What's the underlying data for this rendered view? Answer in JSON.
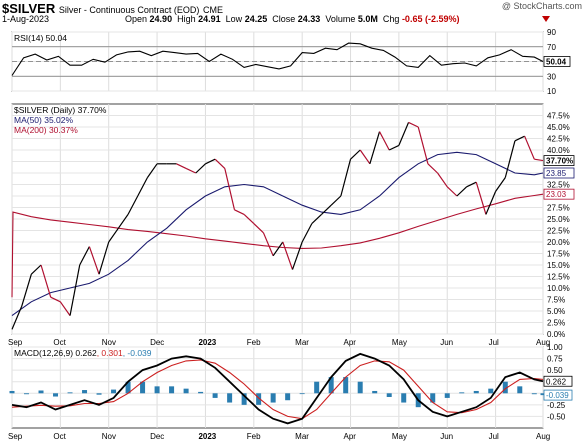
{
  "header": {
    "symbol": "$SILVER",
    "description": "Silver - Continuous Contract (EOD)",
    "exchange": "CME",
    "date": "1-Aug-2023",
    "watermark": "@ StockCharts.com",
    "open_label": "Open",
    "open": "24.90",
    "high_label": "High",
    "high": "24.91",
    "low_label": "Low",
    "low": "24.25",
    "close_label": "Close",
    "close": "24.33",
    "volume_label": "Volume",
    "volume": "5.0M",
    "chg_label": "Chg",
    "chg": "-0.65 (-2.59%)",
    "down_color": "#c00000"
  },
  "chart_data": [
    {
      "type": "line",
      "panel": "rsi",
      "legend": "RSI(14) 50.04",
      "ylim": [
        10,
        90
      ],
      "ticks": [
        "90",
        "70",
        "50",
        "30",
        "10"
      ],
      "current_label": "50.04",
      "reference_lines": [
        70,
        50,
        30
      ],
      "series": [
        {
          "name": "RSI(14)",
          "color": "#000000",
          "x": [
            0,
            12,
            24,
            36,
            48,
            60,
            72,
            84,
            96,
            108,
            120,
            132,
            144,
            156,
            168,
            180,
            192,
            204,
            216,
            228,
            240,
            252,
            264,
            276,
            288,
            300,
            312,
            324,
            336,
            348,
            360,
            372,
            384,
            396,
            408,
            420,
            432,
            444,
            456,
            468,
            480,
            492,
            504,
            516,
            528,
            540,
            549
          ],
          "values": [
            31,
            55,
            60,
            52,
            57,
            45,
            45,
            53,
            49,
            59,
            63,
            64,
            58,
            64,
            62,
            60,
            61,
            50,
            60,
            53,
            42,
            46,
            43,
            40,
            44,
            62,
            61,
            68,
            66,
            75,
            74,
            68,
            65,
            56,
            44,
            42,
            58,
            45,
            47,
            48,
            44,
            55,
            59,
            66,
            57,
            56,
            50
          ]
        }
      ]
    },
    {
      "type": "line",
      "panel": "price",
      "legend": [
        "$SILVER (Daily) 37.70%",
        "MA(50) 35.02%",
        "MA(200) 30.37%"
      ],
      "ylabel": "",
      "ylim": [
        0,
        50
      ],
      "y_unit": "%",
      "ticks": [
        "47.5%",
        "45.0%",
        "42.5%",
        "40.0%",
        "37.5%",
        "35.0%",
        "32.5%",
        "30.0%",
        "27.5%",
        "25.0%",
        "22.5%",
        "20.0%",
        "17.5%",
        "15.0%",
        "12.5%",
        "10.0%",
        "7.5%",
        "5.0%",
        "2.5%",
        "0.0%"
      ],
      "value_labels": [
        "37.70%",
        "23.85",
        "23.03"
      ],
      "x_categories": [
        "Sep",
        "Oct",
        "Nov",
        "Dec",
        "2023",
        "Feb",
        "Mar",
        "Apr",
        "May",
        "Jun",
        "Jul",
        "Aug"
      ],
      "series": [
        {
          "name": "$SILVER (Daily) 37.70%",
          "color": "#000000",
          "down_color": "#b01030",
          "x": [
            0,
            10,
            20,
            30,
            40,
            50,
            60,
            70,
            80,
            90,
            100,
            110,
            120,
            130,
            140,
            150,
            160,
            170,
            180,
            190,
            200,
            210,
            220,
            230,
            240,
            250,
            260,
            270,
            280,
            290,
            300,
            310,
            320,
            330,
            340,
            350,
            360,
            370,
            380,
            390,
            400,
            410,
            420,
            430,
            440,
            450,
            460,
            470,
            480,
            490,
            500,
            510,
            520,
            530,
            540,
            549
          ],
          "values": [
            1,
            6,
            13,
            15,
            8,
            7,
            4,
            15,
            19,
            13,
            20,
            23,
            26,
            30,
            34,
            37,
            37,
            37,
            36,
            35,
            37,
            38,
            36,
            27,
            26,
            24,
            22,
            17,
            20,
            14,
            20,
            24,
            26,
            28,
            30,
            38,
            40,
            37,
            44,
            40,
            41,
            46,
            45,
            37,
            35,
            32,
            30,
            32,
            33,
            26,
            31,
            34,
            42,
            43,
            38,
            37.7
          ]
        },
        {
          "name": "MA(50) 35.02%",
          "color": "#1a1a6e",
          "x": [
            0,
            20,
            40,
            60,
            80,
            100,
            120,
            140,
            160,
            180,
            200,
            220,
            240,
            260,
            280,
            300,
            320,
            340,
            360,
            380,
            400,
            420,
            440,
            460,
            480,
            500,
            520,
            540,
            549
          ],
          "values": [
            4,
            7,
            9,
            10,
            11,
            13,
            16,
            20,
            23,
            27,
            30,
            32,
            32.5,
            32,
            30,
            28,
            26.5,
            26,
            27,
            30,
            34,
            37,
            39,
            39.5,
            39,
            37,
            35,
            34.6,
            35
          ]
        },
        {
          "name": "MA(200) 30.37%",
          "color": "#b01030",
          "x": [
            0,
            1,
            20,
            40,
            60,
            80,
            100,
            120,
            140,
            160,
            180,
            200,
            220,
            240,
            260,
            280,
            300,
            320,
            340,
            360,
            380,
            400,
            420,
            440,
            460,
            480,
            500,
            520,
            540,
            549
          ],
          "values": [
            8,
            26.5,
            25.5,
            24.8,
            24.3,
            23.8,
            23.3,
            22.7,
            22.3,
            21.8,
            21.3,
            20.7,
            20.2,
            19.7,
            19.2,
            18.8,
            18.6,
            18.7,
            19.2,
            19.8,
            20.8,
            22,
            23.4,
            24.7,
            26,
            27.2,
            28.3,
            29.5,
            30.1,
            30.4
          ]
        }
      ]
    },
    {
      "type": "line",
      "panel": "macd",
      "legend": [
        "MACD(12,26,9) 0.262",
        "0.301",
        "-0.039"
      ],
      "ylim": [
        -0.75,
        1.0
      ],
      "ticks": [
        "1.00",
        "0.75",
        "0.50",
        "0.25",
        "0.00",
        "-0.25",
        "-0.50"
      ],
      "value_labels": [
        "0.262",
        "-0.039"
      ],
      "x_categories": [
        "Sep",
        "Oct",
        "Nov",
        "Dec",
        "2023",
        "Feb",
        "Mar",
        "Apr",
        "May",
        "Jun",
        "Jul",
        "Aug"
      ],
      "series": [
        {
          "name": "MACD(12,26,9)",
          "color": "#000000",
          "x": [
            0,
            15,
            30,
            45,
            60,
            75,
            90,
            105,
            120,
            135,
            150,
            165,
            180,
            195,
            210,
            225,
            240,
            255,
            270,
            285,
            300,
            315,
            330,
            345,
            360,
            375,
            390,
            405,
            420,
            435,
            450,
            465,
            480,
            495,
            510,
            525,
            540,
            549
          ],
          "values": [
            -0.25,
            -0.3,
            -0.2,
            -0.35,
            -0.25,
            -0.15,
            -0.25,
            -0.1,
            0.25,
            0.5,
            0.6,
            0.75,
            0.8,
            0.75,
            0.55,
            0.25,
            -0.05,
            -0.35,
            -0.55,
            -0.65,
            -0.55,
            -0.1,
            0.35,
            0.7,
            0.85,
            0.75,
            0.6,
            0.3,
            -0.15,
            -0.4,
            -0.5,
            -0.4,
            -0.3,
            -0.1,
            0.35,
            0.45,
            0.3,
            0.26
          ]
        },
        {
          "name": "signal",
          "color": "#cc2020",
          "x": [
            0,
            15,
            30,
            45,
            60,
            75,
            90,
            105,
            120,
            135,
            150,
            165,
            180,
            195,
            210,
            225,
            240,
            255,
            270,
            285,
            300,
            315,
            330,
            345,
            360,
            375,
            390,
            405,
            420,
            435,
            450,
            465,
            480,
            495,
            510,
            525,
            540,
            549
          ],
          "values": [
            -0.3,
            -0.28,
            -0.26,
            -0.28,
            -0.27,
            -0.22,
            -0.22,
            -0.18,
            0.0,
            0.25,
            0.45,
            0.6,
            0.7,
            0.72,
            0.65,
            0.45,
            0.2,
            -0.1,
            -0.35,
            -0.5,
            -0.55,
            -0.35,
            0.0,
            0.35,
            0.6,
            0.7,
            0.68,
            0.5,
            0.15,
            -0.2,
            -0.4,
            -0.42,
            -0.35,
            -0.2,
            0.1,
            0.3,
            0.32,
            0.3
          ]
        },
        {
          "name": "histogram",
          "color": "#2a7db0",
          "x": [
            0,
            15,
            30,
            45,
            60,
            75,
            90,
            105,
            120,
            135,
            150,
            165,
            180,
            195,
            210,
            225,
            240,
            255,
            270,
            285,
            300,
            315,
            330,
            345,
            360,
            375,
            390,
            405,
            420,
            435,
            450,
            465,
            480,
            495,
            510,
            525,
            540,
            549
          ],
          "values": [
            0.05,
            -0.02,
            0.06,
            -0.07,
            0.02,
            0.07,
            -0.03,
            0.08,
            0.25,
            0.25,
            0.15,
            0.15,
            0.1,
            0.03,
            -0.1,
            -0.2,
            -0.25,
            -0.25,
            -0.2,
            -0.15,
            0.0,
            0.25,
            0.35,
            0.35,
            0.25,
            0.05,
            -0.08,
            -0.2,
            -0.3,
            -0.2,
            -0.1,
            0.02,
            0.05,
            0.1,
            0.25,
            0.15,
            -0.02,
            -0.04
          ]
        }
      ]
    }
  ]
}
